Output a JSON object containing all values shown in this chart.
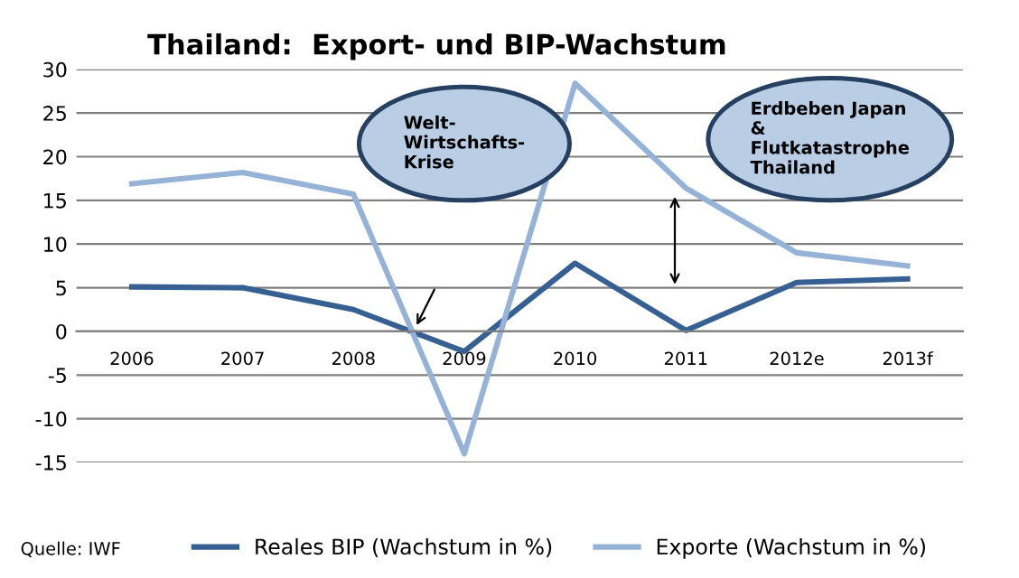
{
  "chart_data": {
    "type": "line",
    "title": "Thailand:  Export- und BIP-Wachstum",
    "categories": [
      "2006",
      "2007",
      "2008",
      "2009",
      "2010",
      "2011",
      "2012e",
      "2013f"
    ],
    "series": [
      {
        "name": "Reales BIP (Wachstum in %)",
        "color": "#376092",
        "values": [
          5.1,
          5.0,
          2.5,
          -2.3,
          7.8,
          0.1,
          5.6,
          6.0
        ]
      },
      {
        "name": "Exporte (Wachstum in %)",
        "color": "#95b3d7",
        "values": [
          16.9,
          18.2,
          15.7,
          -14.0,
          28.4,
          16.4,
          9.0,
          7.5
        ]
      }
    ],
    "ylim": [
      -15,
      30
    ],
    "yticks": [
      -15,
      -10,
      -5,
      0,
      5,
      10,
      15,
      20,
      25,
      30
    ],
    "grid": "y",
    "legend": "bottom",
    "marker": "none",
    "line_style": "solid",
    "annotations": [
      "Welt-\nWirtschafts-\nKrise",
      "Erdbeben Japan\n&\nFlutkatastrophe\nThailand",
      "Quelle: IWF"
    ]
  }
}
